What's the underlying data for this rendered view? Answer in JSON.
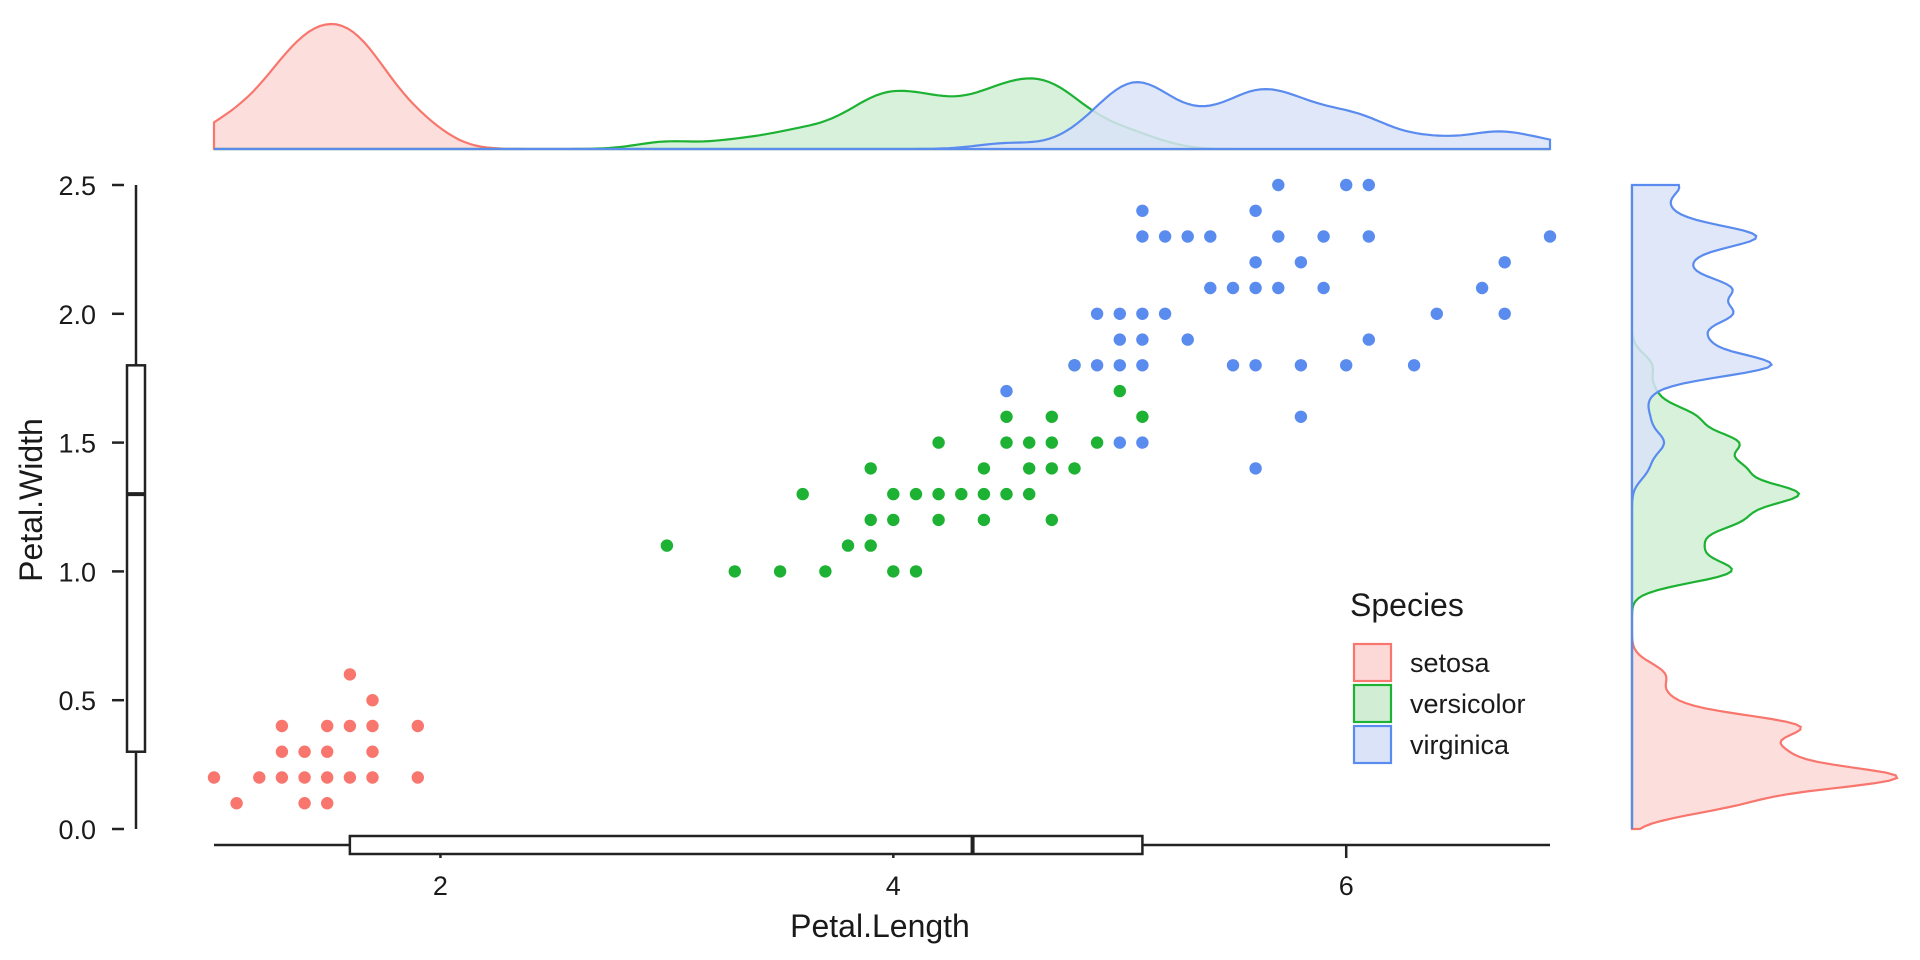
{
  "chart_data": {
    "type": "scatter",
    "xlabel": "Petal.Length",
    "ylabel": "Petal.Width",
    "xlim": [
      1.0,
      6.9
    ],
    "ylim": [
      0.0,
      2.5
    ],
    "x_ticks": [
      2,
      4,
      6
    ],
    "x_tick_labels": [
      "2",
      "4",
      "6"
    ],
    "y_ticks": [
      0.0,
      0.5,
      1.0,
      1.5,
      2.0,
      2.5
    ],
    "y_tick_labels": [
      "0.0",
      "0.5",
      "1.0",
      "1.5",
      "2.0",
      "2.5"
    ],
    "grid": false,
    "legend": {
      "title": "Species",
      "position": "bottom-right, inside plot",
      "entries": [
        "setosa",
        "versicolor",
        "virginica"
      ]
    },
    "marginal_top": "density by species (Petal.Length)",
    "marginal_right": "density by species (Petal.Width)",
    "marginal_boxplots": {
      "x": {
        "min": 1.0,
        "q1": 1.6,
        "median": 4.35,
        "q3": 5.1,
        "max": 6.9
      },
      "y": {
        "min": 0.1,
        "q1": 0.3,
        "median": 1.3,
        "q3": 1.8,
        "max": 2.5
      }
    },
    "series": [
      {
        "name": "setosa",
        "color": "#F8766D",
        "fill": "#FCD9D6",
        "points": [
          [
            1.0,
            0.2
          ],
          [
            1.1,
            0.1
          ],
          [
            1.2,
            0.2
          ],
          [
            1.3,
            0.2
          ],
          [
            1.3,
            0.3
          ],
          [
            1.3,
            0.4
          ],
          [
            1.4,
            0.1
          ],
          [
            1.4,
            0.2
          ],
          [
            1.4,
            0.3
          ],
          [
            1.5,
            0.1
          ],
          [
            1.5,
            0.2
          ],
          [
            1.5,
            0.3
          ],
          [
            1.5,
            0.4
          ],
          [
            1.6,
            0.2
          ],
          [
            1.6,
            0.4
          ],
          [
            1.6,
            0.6
          ],
          [
            1.7,
            0.2
          ],
          [
            1.7,
            0.3
          ],
          [
            1.7,
            0.4
          ],
          [
            1.7,
            0.5
          ],
          [
            1.9,
            0.2
          ],
          [
            1.9,
            0.4
          ]
        ]
      },
      {
        "name": "versicolor",
        "color": "#1DB233",
        "fill": "#D1EED5",
        "points": [
          [
            3.0,
            1.1
          ],
          [
            3.3,
            1.0
          ],
          [
            3.5,
            1.0
          ],
          [
            3.6,
            1.3
          ],
          [
            3.7,
            1.0
          ],
          [
            3.8,
            1.1
          ],
          [
            3.9,
            1.1
          ],
          [
            3.9,
            1.2
          ],
          [
            3.9,
            1.4
          ],
          [
            4.0,
            1.0
          ],
          [
            4.0,
            1.2
          ],
          [
            4.0,
            1.3
          ],
          [
            4.1,
            1.0
          ],
          [
            4.1,
            1.3
          ],
          [
            4.2,
            1.2
          ],
          [
            4.2,
            1.3
          ],
          [
            4.2,
            1.5
          ],
          [
            4.3,
            1.3
          ],
          [
            4.4,
            1.2
          ],
          [
            4.4,
            1.3
          ],
          [
            4.4,
            1.4
          ],
          [
            4.5,
            1.3
          ],
          [
            4.5,
            1.5
          ],
          [
            4.5,
            1.6
          ],
          [
            4.6,
            1.3
          ],
          [
            4.6,
            1.4
          ],
          [
            4.6,
            1.5
          ],
          [
            4.7,
            1.2
          ],
          [
            4.7,
            1.4
          ],
          [
            4.7,
            1.5
          ],
          [
            4.7,
            1.6
          ],
          [
            4.8,
            1.4
          ],
          [
            4.8,
            1.8
          ],
          [
            4.9,
            1.5
          ],
          [
            5.0,
            1.7
          ],
          [
            5.1,
            1.6
          ]
        ]
      },
      {
        "name": "virginica",
        "color": "#5A8BEE",
        "fill": "#DAE3F8",
        "points": [
          [
            4.5,
            1.7
          ],
          [
            4.8,
            1.8
          ],
          [
            4.9,
            1.8
          ],
          [
            4.9,
            2.0
          ],
          [
            5.0,
            1.5
          ],
          [
            5.0,
            1.8
          ],
          [
            5.0,
            1.9
          ],
          [
            5.0,
            2.0
          ],
          [
            5.1,
            1.5
          ],
          [
            5.1,
            1.8
          ],
          [
            5.1,
            1.9
          ],
          [
            5.1,
            2.0
          ],
          [
            5.1,
            2.3
          ],
          [
            5.1,
            2.4
          ],
          [
            5.2,
            2.0
          ],
          [
            5.2,
            2.3
          ],
          [
            5.3,
            1.9
          ],
          [
            5.3,
            2.3
          ],
          [
            5.4,
            2.1
          ],
          [
            5.4,
            2.3
          ],
          [
            5.5,
            1.8
          ],
          [
            5.5,
            2.1
          ],
          [
            5.6,
            1.4
          ],
          [
            5.6,
            1.8
          ],
          [
            5.6,
            2.1
          ],
          [
            5.6,
            2.2
          ],
          [
            5.6,
            2.4
          ],
          [
            5.7,
            2.1
          ],
          [
            5.7,
            2.3
          ],
          [
            5.7,
            2.5
          ],
          [
            5.8,
            1.6
          ],
          [
            5.8,
            1.8
          ],
          [
            5.8,
            2.2
          ],
          [
            5.9,
            2.1
          ],
          [
            5.9,
            2.3
          ],
          [
            6.0,
            1.8
          ],
          [
            6.0,
            2.5
          ],
          [
            6.1,
            1.9
          ],
          [
            6.1,
            2.3
          ],
          [
            6.1,
            2.5
          ],
          [
            6.3,
            1.8
          ],
          [
            6.4,
            2.0
          ],
          [
            6.6,
            2.1
          ],
          [
            6.7,
            2.0
          ],
          [
            6.7,
            2.2
          ],
          [
            6.9,
            2.3
          ]
        ]
      }
    ]
  }
}
